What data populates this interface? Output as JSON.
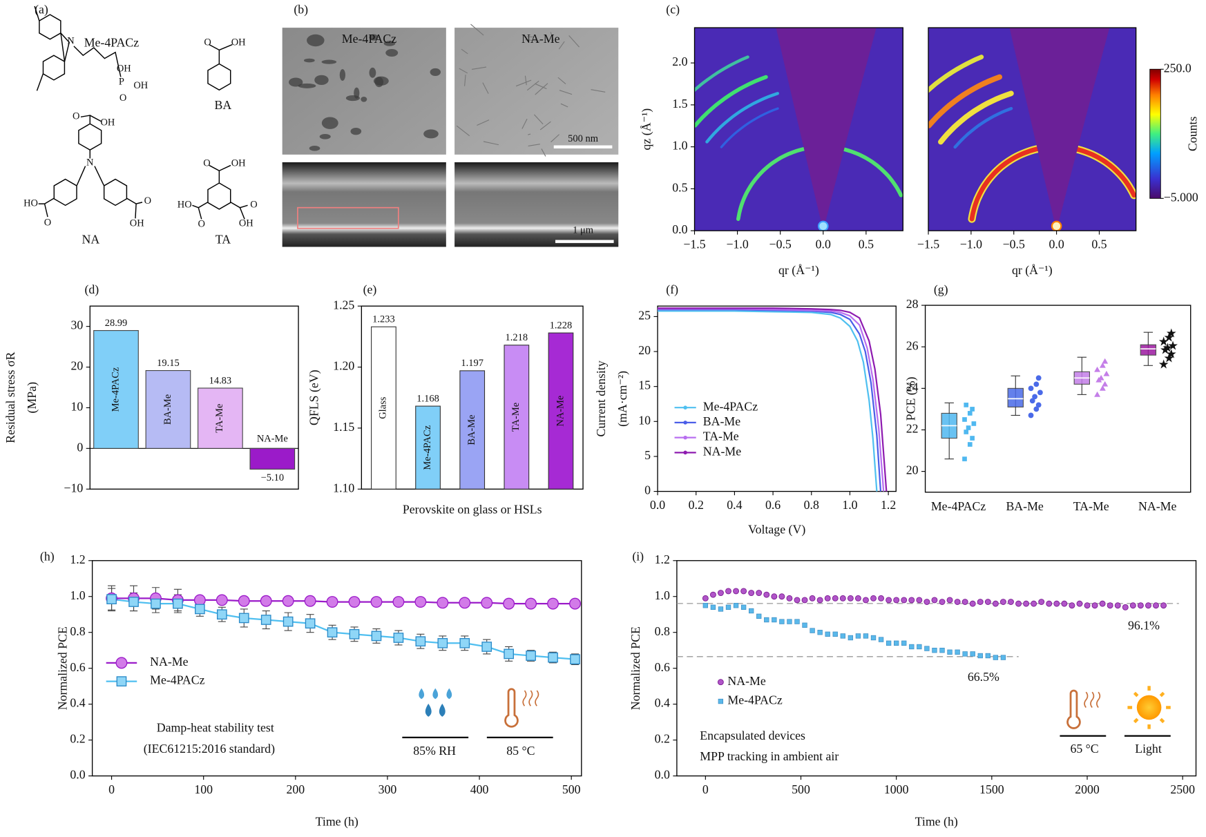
{
  "structures": {
    "label": "(a)",
    "molecules": [
      {
        "name": "Me-4PACz",
        "atoms": [
          "N",
          "P",
          "OH",
          "OH",
          "O"
        ]
      },
      {
        "name": "BA",
        "atoms": [
          "O",
          "OH"
        ]
      },
      {
        "name": "NA",
        "atoms": [
          "N",
          "O",
          "OH",
          "HO",
          "O",
          "O",
          "OH"
        ]
      },
      {
        "name": "TA",
        "atoms": [
          "O",
          "OH",
          "HO",
          "O",
          "O",
          "OH"
        ]
      }
    ]
  },
  "micrographs": {
    "label": "(b)",
    "titles": [
      "Me-4PACz",
      "NA-Me"
    ],
    "scale_bars": [
      "500 nm",
      "1 μm"
    ]
  },
  "chart_data": [
    {
      "type": "heatmap",
      "panel_label": "(c)",
      "xlabel": "qr (Å⁻¹)",
      "ylabel": "qz (Å⁻¹)",
      "xlim": [
        -1.5,
        0.93
      ],
      "ylim": [
        0,
        2.42
      ],
      "xticks": [
        {
          "value": -1.5,
          "label": "−1.5"
        },
        {
          "value": -1,
          "label": "−1.0"
        },
        {
          "value": -0.5,
          "label": "−0.5"
        },
        {
          "value": 0,
          "label": "0.0"
        },
        0.5
      ],
      "yticks": [
        {
          "value": 0,
          "label": "0.0"
        },
        0.5,
        {
          "value": 1,
          "label": "1.0"
        },
        1.5,
        {
          "value": 2,
          "label": "2.0"
        }
      ]
    },
    {
      "type": "heatmap",
      "xlabel": "qr (Å⁻¹)",
      "xlim": [
        -1.5,
        0.93
      ],
      "ylim": [
        0,
        2.42
      ],
      "xticks": [
        {
          "value": -1.5,
          "label": "−1.5"
        },
        {
          "value": -1,
          "label": "−1.0"
        },
        {
          "value": -0.5,
          "label": "−0.5"
        },
        {
          "value": 0,
          "label": "0.0"
        },
        0.5
      ],
      "colorbar": {
        "label": "Counts",
        "lim": [
          -5,
          250
        ],
        "ticks": [
          {
            "value": 250,
            "label": "250.0"
          },
          {
            "value": -5,
            "label": "−5.000"
          }
        ]
      }
    },
    {
      "type": "bar",
      "panel_label": "(d)",
      "ylabel": [
        "Residual stress σR",
        "(MPa)"
      ],
      "categories": [
        "Me-4PACz",
        "BA-Me",
        "TA-Me",
        "NA-Me"
      ],
      "values": [
        28.99,
        19.15,
        14.83,
        -5.1
      ],
      "value_labels": [
        "28.99",
        "19.15",
        "14.83",
        "−5.10"
      ],
      "colors": [
        "#80cff8",
        "#b6bbf4",
        "#e4b6f4",
        "#9b1bc9"
      ],
      "ylim": [
        -10,
        35
      ],
      "yticks": [
        {
          "value": -10,
          "label": "−10"
        },
        0,
        10,
        20,
        30
      ]
    },
    {
      "type": "bar",
      "panel_label": "(e)",
      "xlabel": "Perovskite on glass or HSLs",
      "ylabel": "QFLS (eV)",
      "categories": [
        "Glass",
        "Me-4PACz",
        "BA-Me",
        "TA-Me",
        "NA-Me"
      ],
      "values": [
        1.233,
        1.168,
        1.197,
        1.218,
        1.228
      ],
      "colors": [
        "#ffffff",
        "#80cff8",
        "#9aa4f4",
        "#c88cf4",
        "#a62ad4"
      ],
      "ylim": [
        1.1,
        1.25
      ],
      "yticks": [
        {
          "value": 1.1,
          "label": "1.10"
        },
        1.15,
        {
          "value": 1.2,
          "label": "1.20"
        },
        1.25
      ]
    },
    {
      "type": "line",
      "panel_label": "(f)",
      "xlabel": "Voltage (V)",
      "ylabel": [
        "Current density",
        "(mA·cm⁻²)"
      ],
      "xlim": [
        0,
        1.24
      ],
      "ylim": [
        0,
        26.5
      ],
      "xticks": [
        {
          "value": 0,
          "label": "0.0"
        },
        0.2,
        0.4,
        0.6,
        0.8,
        {
          "value": 1,
          "label": "1.0"
        },
        1.2
      ],
      "yticks": [
        0,
        5,
        10,
        15,
        20,
        25
      ],
      "series": [
        {
          "name": "Me-4PACz",
          "color": "#4fc0f0",
          "x": [
            0,
            0.2,
            0.4,
            0.6,
            0.8,
            0.9,
            0.95,
            1.0,
            1.04,
            1.07,
            1.1,
            1.12,
            1.14
          ],
          "values": [
            25.8,
            25.8,
            25.8,
            25.7,
            25.6,
            25.3,
            24.8,
            23.6,
            21.5,
            18.5,
            13,
            7.5,
            0
          ]
        },
        {
          "name": "BA-Me",
          "color": "#4a5de8",
          "x": [
            0,
            0.2,
            0.4,
            0.6,
            0.8,
            0.9,
            0.95,
            1.0,
            1.05,
            1.08,
            1.11,
            1.14,
            1.16
          ],
          "values": [
            26.0,
            26.0,
            26.0,
            25.9,
            25.8,
            25.6,
            25.3,
            24.6,
            22.5,
            20,
            15.5,
            8,
            0
          ]
        },
        {
          "name": "TA-Me",
          "color": "#b86ef0",
          "x": [
            0,
            0.2,
            0.4,
            0.6,
            0.8,
            0.9,
            0.95,
            1.0,
            1.05,
            1.09,
            1.12,
            1.15,
            1.175
          ],
          "values": [
            26.1,
            26.1,
            26.1,
            26.0,
            25.9,
            25.8,
            25.6,
            25.1,
            23.8,
            20.5,
            16,
            9,
            0
          ]
        },
        {
          "name": "NA-Me",
          "color": "#8e1bb0",
          "x": [
            0,
            0.2,
            0.4,
            0.6,
            0.8,
            0.9,
            0.95,
            1.0,
            1.05,
            1.1,
            1.13,
            1.16,
            1.19
          ],
          "values": [
            26.2,
            26.2,
            26.2,
            26.2,
            26.1,
            26.0,
            25.9,
            25.6,
            24.8,
            21.5,
            17.5,
            11,
            0
          ]
        }
      ]
    },
    {
      "type": "box",
      "panel_label": "(g)",
      "ylabel": "PCE (%)",
      "categories": [
        "Me-4PACz",
        "BA-Me",
        "TA-Me",
        "NA-Me"
      ],
      "colors": [
        "#4fb8f0",
        "#4a6ae8",
        "#c47ee8",
        "#9c1aa0"
      ],
      "ylim": [
        19,
        28
      ],
      "yticks": [
        20,
        22,
        24,
        26,
        28
      ],
      "boxes": [
        {
          "min": 20.6,
          "q1": 21.6,
          "median": 22.2,
          "q3": 22.8,
          "max": 23.3
        },
        {
          "min": 22.7,
          "q1": 23.1,
          "median": 23.5,
          "q3": 24.0,
          "max": 24.6
        },
        {
          "min": 23.7,
          "q1": 24.2,
          "median": 24.5,
          "q3": 24.8,
          "max": 25.5
        },
        {
          "min": 25.1,
          "q1": 25.6,
          "median": 25.9,
          "q3": 26.1,
          "max": 26.7
        }
      ],
      "points": [
        [
          20.6,
          21.3,
          21.6,
          21.9,
          22.1,
          22.3,
          22.5,
          22.8,
          23.0,
          23.2
        ],
        [
          22.7,
          23.0,
          23.2,
          23.4,
          23.6,
          23.8,
          24.0,
          24.2,
          24.5
        ],
        [
          23.7,
          24.0,
          24.2,
          24.4,
          24.5,
          24.7,
          24.9,
          25.1,
          25.3
        ],
        [
          25.1,
          25.4,
          25.6,
          25.8,
          25.9,
          26.0,
          26.2,
          26.4,
          26.6
        ]
      ]
    },
    {
      "type": "errorline",
      "panel_label": "(h)",
      "xlabel": "Time (h)",
      "ylabel": "Normalized PCE",
      "xlim": [
        -21,
        511
      ],
      "ylim": [
        0,
        1.2
      ],
      "xticks": [
        0,
        100,
        200,
        300,
        400,
        500
      ],
      "yticks": [
        {
          "value": 0,
          "label": "0.0"
        },
        0.2,
        0.4,
        0.6,
        0.8,
        {
          "value": 1,
          "label": "1.0"
        },
        1.2
      ],
      "x": [
        0,
        24,
        48,
        72,
        96,
        120,
        144,
        168,
        192,
        216,
        240,
        264,
        288,
        312,
        336,
        360,
        384,
        408,
        432,
        456,
        480,
        504
      ],
      "series": [
        {
          "name": "NA-Me",
          "color": "#9b1bc9",
          "fill": "#d27be8",
          "marker": "circle",
          "values": [
            0.99,
            0.99,
            0.99,
            0.98,
            0.98,
            0.98,
            0.975,
            0.975,
            0.975,
            0.975,
            0.97,
            0.97,
            0.97,
            0.97,
            0.97,
            0.965,
            0.965,
            0.965,
            0.96,
            0.96,
            0.96,
            0.96
          ],
          "errors": [
            0.07,
            0.07,
            0.06,
            0.06,
            0.02,
            0.02,
            0.02,
            0.02,
            0.02,
            0.02,
            0.02,
            0.02,
            0.02,
            0.02,
            0.02,
            0.02,
            0.02,
            0.02,
            0.02,
            0.02,
            0.02,
            0.02
          ]
        },
        {
          "name": "Me-4PACz",
          "color": "#4fbff0",
          "fill": "#8fd6f7",
          "marker": "square",
          "values": [
            0.985,
            0.97,
            0.96,
            0.96,
            0.93,
            0.9,
            0.88,
            0.87,
            0.86,
            0.85,
            0.8,
            0.79,
            0.78,
            0.77,
            0.75,
            0.74,
            0.74,
            0.72,
            0.68,
            0.67,
            0.66,
            0.65
          ],
          "errors": [
            0.06,
            0.05,
            0.05,
            0.05,
            0.04,
            0.04,
            0.05,
            0.05,
            0.05,
            0.05,
            0.04,
            0.04,
            0.04,
            0.04,
            0.04,
            0.04,
            0.04,
            0.04,
            0.04,
            0.03,
            0.03,
            0.03
          ]
        }
      ],
      "annotations": [
        "Damp-heat stability test",
        "(IEC61215:2016 standard)",
        "85% RH",
        "85 °C"
      ]
    },
    {
      "type": "scatter",
      "panel_label": "(i)",
      "xlabel": "Time (h)",
      "ylabel": "Normalized PCE",
      "xlim": [
        -150,
        2570
      ],
      "ylim": [
        0,
        1.2
      ],
      "xticks": [
        0,
        500,
        1000,
        1500,
        2000,
        2500
      ],
      "yticks": [
        {
          "value": 0,
          "label": "0.0"
        },
        0.2,
        0.4,
        0.6,
        0.8,
        {
          "value": 1,
          "label": "1.0"
        },
        1.2
      ],
      "series": [
        {
          "name": "NA-Me",
          "color": "#b055c8",
          "marker": "circle",
          "x": [
            0,
            40,
            80,
            120,
            160,
            200,
            240,
            280,
            320,
            360,
            400,
            440,
            480,
            520,
            560,
            600,
            640,
            680,
            720,
            760,
            800,
            840,
            880,
            920,
            960,
            1000,
            1040,
            1080,
            1120,
            1160,
            1200,
            1240,
            1280,
            1320,
            1360,
            1400,
            1440,
            1480,
            1520,
            1560,
            1600,
            1640,
            1680,
            1720,
            1760,
            1800,
            1840,
            1880,
            1920,
            1960,
            2000,
            2040,
            2080,
            2120,
            2160,
            2200,
            2240,
            2280,
            2320,
            2360,
            2400
          ],
          "values": [
            0.99,
            1.01,
            1.02,
            1.03,
            1.03,
            1.03,
            1.02,
            1.02,
            1.01,
            1.0,
            1.0,
            0.99,
            0.98,
            0.98,
            0.99,
            0.98,
            0.99,
            0.99,
            0.99,
            0.99,
            0.99,
            0.98,
            0.99,
            0.99,
            0.98,
            0.98,
            0.98,
            0.98,
            0.98,
            0.97,
            0.98,
            0.97,
            0.98,
            0.97,
            0.97,
            0.96,
            0.97,
            0.97,
            0.96,
            0.97,
            0.97,
            0.96,
            0.96,
            0.96,
            0.97,
            0.96,
            0.96,
            0.96,
            0.95,
            0.96,
            0.95,
            0.95,
            0.96,
            0.95,
            0.95,
            0.94,
            0.95,
            0.95,
            0.95,
            0.95,
            0.95
          ]
        },
        {
          "name": "Me-4PACz",
          "color": "#5ab8ea",
          "marker": "square",
          "x": [
            0,
            40,
            80,
            120,
            160,
            200,
            240,
            280,
            320,
            360,
            400,
            440,
            480,
            520,
            560,
            600,
            640,
            680,
            720,
            760,
            800,
            840,
            880,
            920,
            960,
            1000,
            1040,
            1080,
            1120,
            1160,
            1200,
            1240,
            1280,
            1320,
            1360,
            1400,
            1440,
            1480,
            1520,
            1560
          ],
          "values": [
            0.95,
            0.94,
            0.93,
            0.94,
            0.95,
            0.94,
            0.92,
            0.89,
            0.87,
            0.87,
            0.86,
            0.86,
            0.86,
            0.84,
            0.81,
            0.8,
            0.79,
            0.79,
            0.78,
            0.77,
            0.78,
            0.78,
            0.77,
            0.76,
            0.74,
            0.74,
            0.74,
            0.72,
            0.72,
            0.71,
            0.7,
            0.7,
            0.69,
            0.69,
            0.68,
            0.68,
            0.67,
            0.67,
            0.66,
            0.66
          ]
        }
      ],
      "reference_lines": [
        {
          "value": 0.961,
          "label": "96.1%"
        },
        {
          "value": 0.665,
          "label": "66.5%"
        }
      ],
      "annotations": [
        "Encapsulated devices",
        "MPP tracking  in ambient air",
        "65 °C",
        "Light"
      ]
    }
  ]
}
